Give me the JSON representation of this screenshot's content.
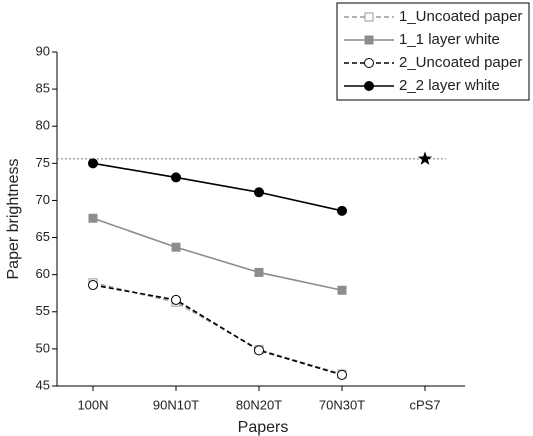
{
  "chart_data": {
    "type": "line",
    "xlabel": "Papers",
    "ylabel": "Paper brightness",
    "categories": [
      "100N",
      "90N10T",
      "80N20T",
      "70N30T",
      "cPS7"
    ],
    "ylim": [
      45,
      90
    ],
    "yticks": [
      45,
      50,
      55,
      60,
      65,
      70,
      75,
      80,
      85,
      90
    ],
    "series": [
      {
        "name": "1_Uncoated paper",
        "color": "#999999",
        "dash": true,
        "marker": "square",
        "filled": false,
        "values": [
          58.9,
          56.3,
          49.9,
          46.6,
          null
        ]
      },
      {
        "name": "1_1 layer white",
        "color": "#8c8c8c",
        "dash": false,
        "marker": "square",
        "filled": true,
        "values": [
          67.6,
          63.7,
          60.3,
          57.9,
          null
        ]
      },
      {
        "name": "2_Uncoated paper",
        "color": "#000000",
        "dash": true,
        "marker": "circle",
        "filled": false,
        "values": [
          58.6,
          56.6,
          49.8,
          46.5,
          null
        ]
      },
      {
        "name": "2_2 layer white",
        "color": "#000000",
        "dash": false,
        "marker": "circle",
        "filled": true,
        "values": [
          75.0,
          73.1,
          71.1,
          68.6,
          null
        ]
      }
    ],
    "reference": {
      "category": 4,
      "value": 75.6,
      "marker": "star",
      "color": "#000000"
    },
    "legend": "upper right"
  }
}
